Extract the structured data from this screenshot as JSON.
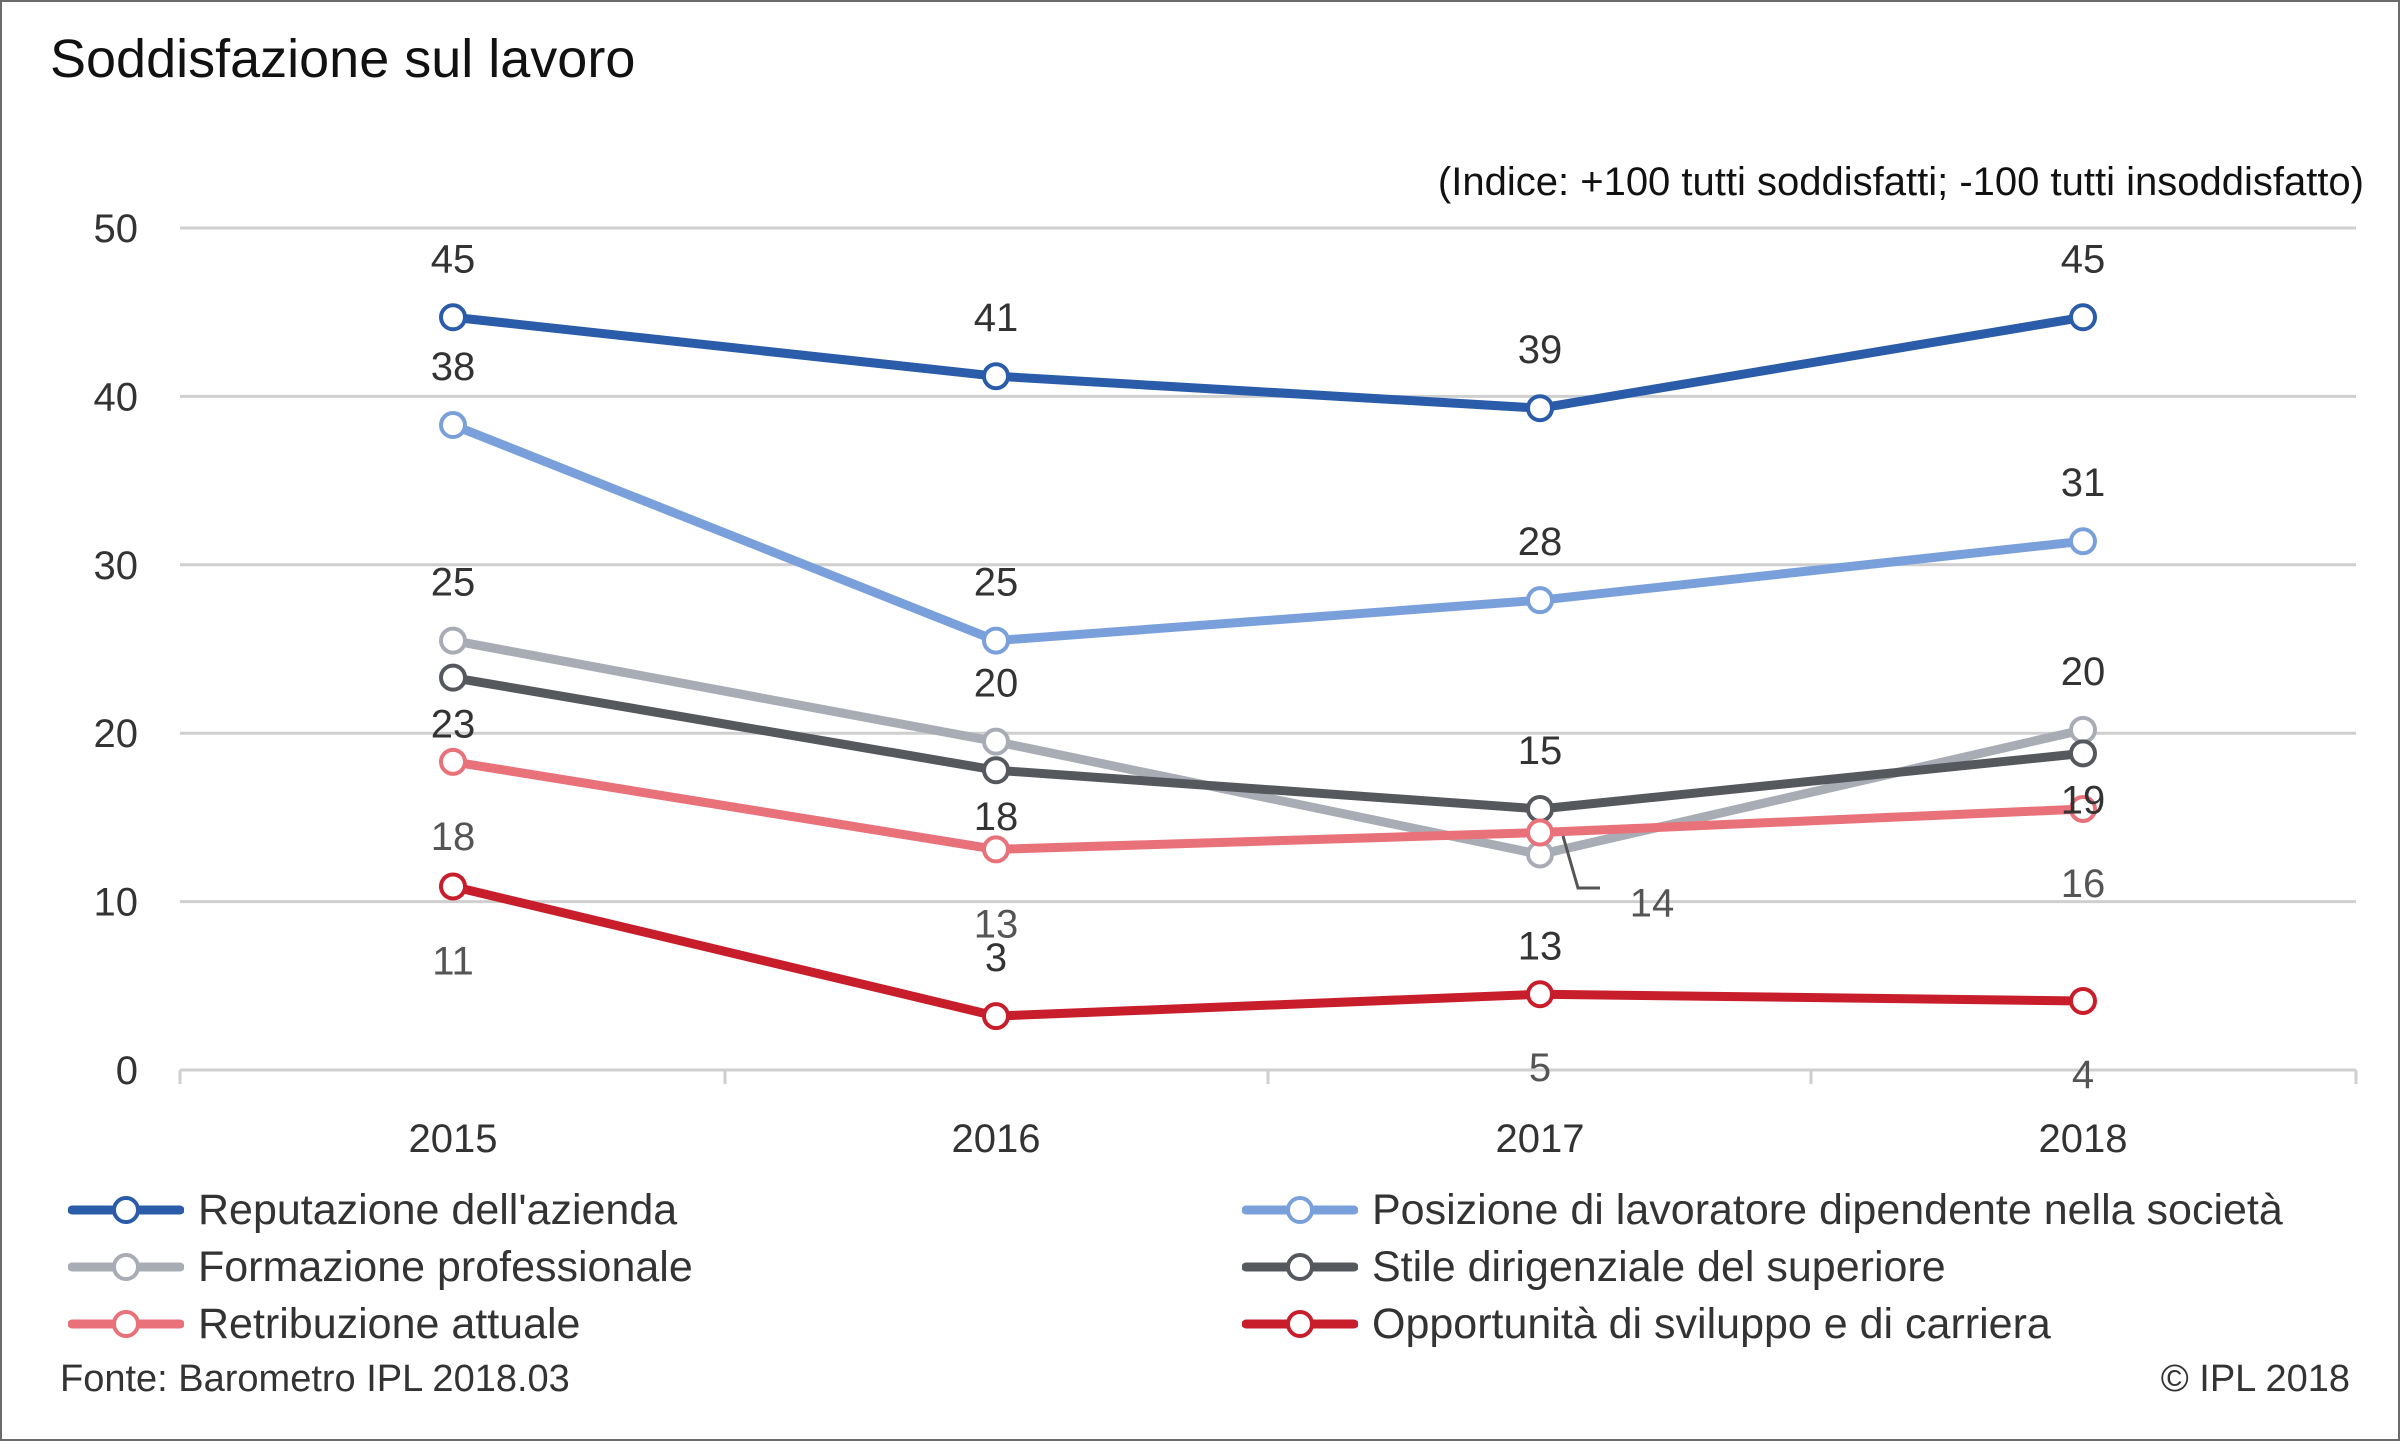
{
  "chart_data": {
    "type": "line",
    "title": "Soddisfazione sul lavoro",
    "subtitle": "(Indice: +100 tutti soddisfatti; -100 tutti insoddisfatto)",
    "x": [
      "2015",
      "2016",
      "2017",
      "2018"
    ],
    "y_ticks": [
      "0",
      "10",
      "20",
      "30",
      "40",
      "50"
    ],
    "ylim": [
      0,
      50
    ],
    "grid": true,
    "legend_position": "bottom",
    "series": [
      {
        "name": "Reputazione dell'azienda",
        "color": "#2a5caa",
        "values": [
          44.7,
          41.2,
          39.3,
          44.7
        ],
        "labels": [
          "45",
          "41",
          "39",
          "45"
        ]
      },
      {
        "name": "Posizione di lavoratore dipendente nella società",
        "color": "#7aa0dc",
        "values": [
          38.3,
          25.5,
          27.9,
          31.4
        ],
        "labels": [
          "38",
          "25",
          "28",
          "31"
        ]
      },
      {
        "name": "Formazione professionale",
        "color": "#a8adb5",
        "values": [
          25.5,
          19.5,
          12.8,
          20.2
        ],
        "labels": [
          "25",
          "20",
          "13",
          "20"
        ]
      },
      {
        "name": "Stile dirigenziale del superiore",
        "color": "#55585d",
        "values": [
          23.3,
          17.8,
          15.5,
          18.8
        ],
        "labels": [
          "23",
          "18",
          "15",
          "19"
        ]
      },
      {
        "name": "Retribuzione attuale",
        "color": "#e8717a",
        "values": [
          18.3,
          13.1,
          14.1,
          15.5
        ],
        "labels": [
          "18",
          "13",
          "14",
          "16"
        ]
      },
      {
        "name": "Opportunità di sviluppo e di carriera",
        "color": "#c81e2b",
        "values": [
          10.9,
          3.2,
          4.5,
          4.1
        ],
        "labels": [
          "11",
          "3",
          "5",
          "4"
        ]
      }
    ]
  },
  "footer": {
    "source": "Fonte: Barometro IPL 2018.03",
    "copyright": "© IPL 2018"
  }
}
